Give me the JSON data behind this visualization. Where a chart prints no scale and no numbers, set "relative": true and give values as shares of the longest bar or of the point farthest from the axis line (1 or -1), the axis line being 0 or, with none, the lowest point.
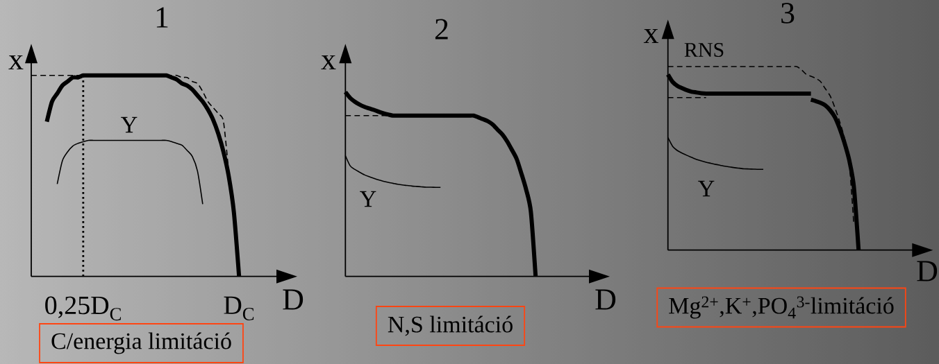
{
  "chart_data": [
    {
      "type": "line",
      "title": "1",
      "xlabel": "D",
      "ylabel": "x",
      "relative": true,
      "categories": [
        null,
        null,
        null,
        null,
        null,
        null,
        null,
        null,
        null,
        null,
        "0,25D$_{C}$",
        null,
        null,
        null,
        null,
        null,
        null,
        null,
        null,
        null,
        null,
        null,
        null,
        null,
        null,
        null,
        null,
        null,
        null,
        null,
        null,
        null,
        null,
        null,
        null,
        null,
        null,
        null,
        null,
        null,
        "D$_{C}$",
        null,
        null,
        null,
        null,
        null,
        null,
        null,
        null,
        null,
        null,
        null
      ],
      "series": [
        {
          "color": "#000000",
          "values": [
            null,
            null,
            null,
            0.77,
            0.87,
            0.91,
            0.95,
            0.97,
            0.99,
            0.99,
            1.0,
            1.0,
            1.0,
            1.0,
            1.0,
            1.0,
            1.0,
            1.0,
            1.0,
            1.0,
            1.0,
            1.0,
            1.0,
            1.0,
            1.0,
            1.0,
            1.0,
            0.99,
            0.98,
            0.96,
            0.95,
            0.93,
            0.9,
            0.87,
            0.83,
            0.78,
            0.71,
            0.62,
            0.5,
            0.32,
            0,
            null,
            null,
            null,
            null,
            null,
            null,
            null,
            null,
            null,
            null,
            null
          ]
        },
        {
          "color": "#000000",
          "line_style": "dashed",
          "values": [
            1.0,
            1.0,
            1.0,
            1.0,
            1.0,
            1.0,
            1.0,
            1.0,
            1.0,
            1.0,
            1.0,
            null,
            null,
            null,
            null,
            null,
            null,
            null,
            null,
            null,
            null,
            null,
            null,
            null,
            null,
            null,
            null,
            null,
            null,
            null,
            null,
            null,
            null,
            null,
            null,
            null,
            null,
            null,
            null,
            null,
            null,
            null,
            null,
            null,
            null,
            null,
            null,
            null,
            null,
            null,
            null,
            null
          ]
        },
        {
          "color": "#000000",
          "line_style": "dashed",
          "values": [
            null,
            null,
            null,
            null,
            null,
            null,
            null,
            null,
            null,
            null,
            null,
            null,
            null,
            null,
            null,
            null,
            null,
            null,
            null,
            null,
            null,
            null,
            null,
            null,
            null,
            null,
            1.0,
            1.0,
            1.0,
            0.99,
            0.99,
            0.97,
            0.96,
            0.92,
            0.87,
            0.84,
            0.81,
            0.77,
            0.52,
            null,
            null,
            null,
            null,
            null,
            null,
            null,
            null,
            null,
            null,
            null,
            null,
            null
          ]
        },
        {
          "name": "Y",
          "color": "#000000",
          "values": [
            null,
            null,
            null,
            null,
            null,
            0.46,
            0.576,
            0.62,
            0.649,
            0.662,
            0.67,
            0.677,
            0.677,
            0.677,
            0.677,
            0.677,
            0.677,
            0.677,
            0.677,
            0.677,
            0.677,
            0.677,
            0.677,
            0.677,
            0.677,
            0.677,
            0.677,
            0.671,
            0.662,
            0.653,
            0.627,
            0.597,
            0.524,
            0.36,
            null,
            null,
            null,
            null,
            null,
            null,
            null,
            null,
            null,
            null,
            null,
            null,
            null,
            null,
            null,
            null,
            null,
            null
          ]
        }
      ],
      "ref_lines": [
        {
          "axis": "x",
          "value": "0,25D$_{C}$",
          "line_style": "dotted"
        }
      ],
      "annotations": [
        "C/energia limitáció"
      ]
    },
    {
      "type": "line",
      "title": "2",
      "xlabel": "D",
      "ylabel": "x",
      "relative": true,
      "categories": [
        null,
        null,
        null,
        null,
        null,
        null,
        null,
        null,
        null,
        null,
        null,
        null,
        null,
        null,
        null,
        null,
        null,
        null,
        null,
        null,
        null,
        null,
        null,
        null,
        null,
        null,
        null,
        null,
        null,
        null,
        null,
        null,
        null,
        null,
        null,
        null,
        null,
        null,
        null,
        null,
        null,
        null,
        null,
        null,
        null,
        null,
        null,
        null,
        null,
        null,
        null,
        null,
        null,
        null,
        null,
        null
      ],
      "series": [
        {
          "color": "#000000",
          "values": [
            1.0,
            0.968,
            0.947,
            0.932,
            0.92,
            0.911,
            0.903,
            0.893,
            0.885,
            0.878,
            0.872,
            0.872,
            0.872,
            0.872,
            0.872,
            0.872,
            0.872,
            0.872,
            0.872,
            0.872,
            0.872,
            0.872,
            0.872,
            0.872,
            0.872,
            0.872,
            0.872,
            0.872,
            0.862,
            0.852,
            0.841,
            0.823,
            0.796,
            0.77,
            0.733,
            0.687,
            0.638,
            0.559,
            0.472,
            0.351,
            0,
            null,
            null,
            null,
            null,
            null,
            null,
            null,
            null,
            null,
            null,
            null,
            null,
            null,
            null,
            null
          ]
        },
        {
          "color": "#000000",
          "line_style": "dashed",
          "values": [
            0.872,
            0.872,
            0.872,
            0.872,
            0.872,
            0.872,
            0.872,
            0.872,
            0.872,
            0.872,
            0.872,
            null,
            null,
            null,
            null,
            null,
            null,
            null,
            null,
            null,
            null,
            null,
            null,
            null,
            null,
            null,
            null,
            null,
            null,
            null,
            null,
            null,
            null,
            null,
            null,
            null,
            null,
            null,
            null,
            null,
            null,
            null,
            null,
            null,
            null,
            null,
            null,
            null,
            null,
            null,
            null,
            null,
            null,
            null,
            null,
            null
          ]
        },
        {
          "name": "Y",
          "color": "#000000",
          "values": [
            0.655,
            0.6,
            0.58,
            0.565,
            0.551,
            0.541,
            0.532,
            0.523,
            0.516,
            0.51,
            0.505,
            0.5,
            0.496,
            0.493,
            0.49,
            0.488,
            0.486,
            0.484,
            0.484,
            0.483,
            0.483,
            null,
            null,
            null,
            null,
            null,
            null,
            null,
            null,
            null,
            null,
            null,
            null,
            null,
            null,
            null,
            null,
            null,
            null,
            null,
            null,
            null,
            null,
            null,
            null,
            null,
            null,
            null,
            null,
            null,
            null,
            null,
            null,
            null,
            null,
            null
          ]
        }
      ],
      "annotations": [
        "N,S limitáció"
      ]
    },
    {
      "type": "line",
      "title": "3",
      "xlabel": "D",
      "ylabel": "x",
      "relative": true,
      "categories": [
        null,
        null,
        null,
        null,
        null,
        null,
        null,
        null,
        null,
        null,
        null,
        null,
        null,
        null,
        null,
        null,
        null,
        null,
        null,
        null,
        null,
        null,
        null,
        null,
        null,
        null,
        null,
        null,
        null,
        null,
        null,
        null,
        null,
        null,
        null,
        null,
        null,
        null,
        null,
        null,
        null,
        null,
        null,
        null,
        null,
        null,
        null,
        null,
        null,
        null,
        null,
        null,
        null,
        null,
        null,
        null
      ],
      "series": [
        {
          "color": "#000000",
          "values": [
            0.957,
            0.916,
            0.894,
            0.882,
            0.871,
            0.863,
            0.859,
            0.855,
            0.853,
            0.853,
            0.853,
            0.853,
            0.853,
            0.853,
            0.853,
            0.853,
            0.853,
            0.853,
            0.853,
            0.853,
            0.853,
            0.853,
            0.853,
            0.853,
            0.853,
            0.853,
            0.853,
            0.853,
            0.853,
            0.853,
            0.853,
            null,
            null,
            null,
            null,
            null,
            null,
            null,
            null,
            null,
            null,
            null,
            null,
            null,
            null,
            null,
            null,
            null,
            null,
            null,
            null,
            null,
            null,
            null,
            null,
            null
          ]
        },
        {
          "color": "#000000",
          "values": [
            null,
            null,
            null,
            null,
            null,
            null,
            null,
            null,
            null,
            null,
            null,
            null,
            null,
            null,
            null,
            null,
            null,
            null,
            null,
            null,
            null,
            null,
            null,
            null,
            null,
            null,
            null,
            null,
            null,
            null,
            0.819,
            0.812,
            0.803,
            0.789,
            0.763,
            0.726,
            0.665,
            0.588,
            0.494,
            0.346,
            0,
            null,
            null,
            null,
            null,
            null,
            null,
            null,
            null,
            null,
            null,
            null,
            null,
            null,
            null,
            null
          ]
        },
        {
          "color": "#000000",
          "line_style": "dashed",
          "values": [
            1.0,
            1.0,
            1.0,
            1.0,
            1.0,
            1.0,
            1.0,
            1.0,
            1.0,
            1.0,
            1.0,
            1.0,
            1.0,
            1.0,
            1.0,
            1.0,
            1.0,
            1.0,
            1.0,
            1.0,
            1.0,
            1.0,
            1.0,
            1.0,
            1.0,
            1.0,
            1.0,
            1.0,
            0.983,
            0.958,
            0.947,
            0.936,
            0.919,
            0.88,
            0.842,
            0.778,
            0.702,
            0.614,
            0.486,
            0.14,
            null,
            null,
            null,
            null,
            null,
            null,
            null,
            null,
            null,
            null,
            null,
            null,
            null,
            null,
            null,
            null
          ]
        },
        {
          "color": "#000000",
          "line_style": "dashed",
          "values": [
            0.831,
            0.831,
            0.831,
            0.831,
            0.831,
            0.831,
            0.831,
            0.831,
            0.831,
            null,
            null,
            null,
            null,
            null,
            null,
            null,
            null,
            null,
            null,
            null,
            null,
            null,
            null,
            null,
            null,
            null,
            null,
            null,
            null,
            null,
            null,
            null,
            null,
            null,
            null,
            null,
            null,
            null,
            null,
            null,
            null,
            null,
            null,
            null,
            null,
            null,
            null,
            null,
            null,
            null,
            null,
            null,
            null,
            null,
            null,
            null
          ]
        },
        {
          "name": "Y",
          "color": "#000000",
          "values": [
            0.613,
            0.565,
            0.542,
            0.528,
            0.516,
            0.505,
            0.494,
            0.486,
            0.479,
            0.473,
            0.467,
            0.462,
            0.457,
            0.453,
            0.449,
            0.446,
            0.443,
            0.442,
            0.441,
            0.44,
            0.44,
            null,
            null,
            null,
            null,
            null,
            null,
            null,
            null,
            null,
            null,
            null,
            null,
            null,
            null,
            null,
            null,
            null,
            null,
            null,
            null,
            null,
            null,
            null,
            null,
            null,
            null,
            null,
            null,
            null,
            null,
            null,
            null,
            null,
            null,
            null
          ]
        }
      ],
      "annotations": [
        "RNS",
        "Mg$^{2+}$,K$^{+}$,PO$_{4}$$^{3-}$limitáció"
      ]
    }
  ]
}
